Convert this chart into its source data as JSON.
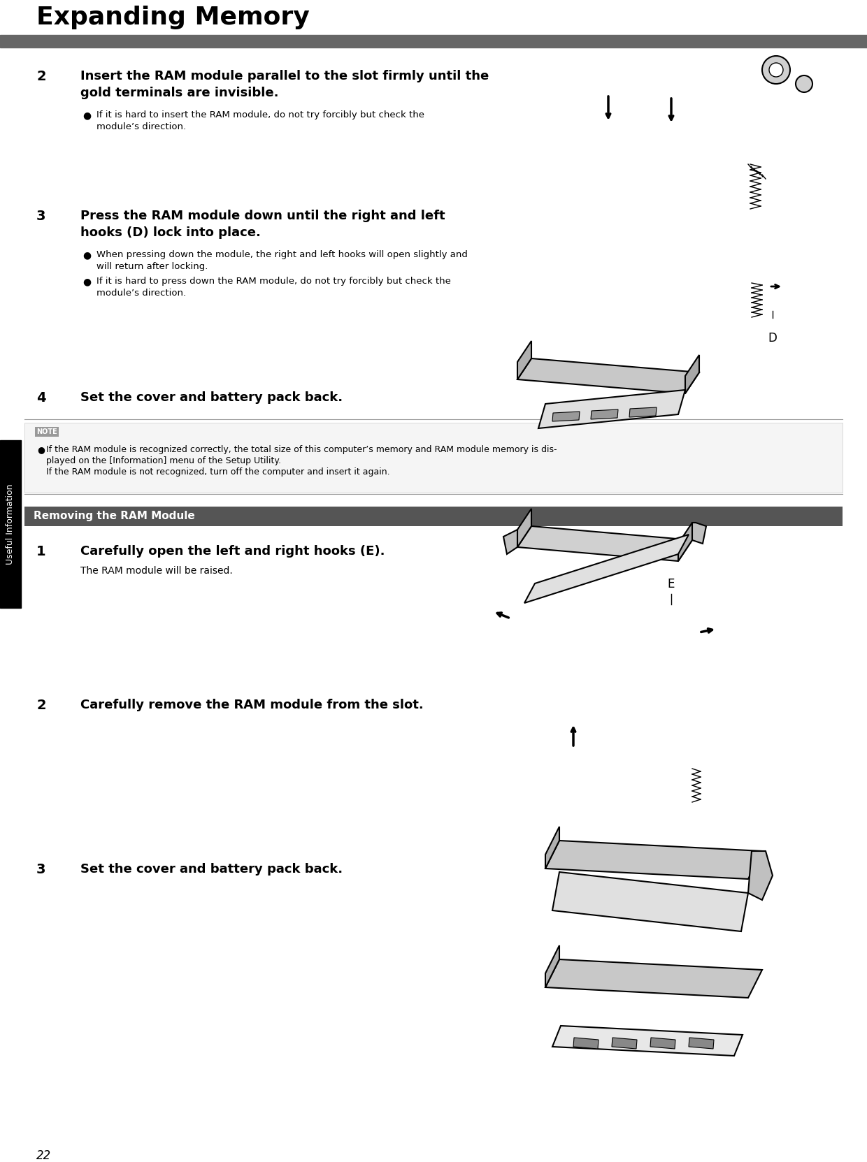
{
  "title": "Expanding Memory",
  "page_number": "22",
  "sidebar_text": "Useful Information",
  "sidebar_bg": "#000000",
  "sidebar_text_color": "#ffffff",
  "title_bar_color": "#666666",
  "section_header_bg": "#555555",
  "section_header_text": "#ffffff",
  "background": "#ffffff",
  "step2_heading": "Insert the RAM module parallel to the slot firmly until the\ngold terminals are invisible.",
  "step2_bullet": "If it is hard to insert the RAM module, do not try forcibly but check the\nmodule’s direction.",
  "step3_heading": "Press the RAM module down until the right and left\nhooks (D) lock into place.",
  "step3_bullet1": "When pressing down the module, the right and left hooks will open slightly and\nwill return after locking.",
  "step3_bullet2": "If it is hard to press down the RAM module, do not try forcibly but check the\nmodule’s direction.",
  "step4_heading": "Set the cover and battery pack back.",
  "note_label": "NOTE",
  "note_text1": "If the RAM module is recognized correctly, the total size of this computer’s memory and RAM module memory is dis-",
  "note_text2": "played on the [Information] menu of the Setup Utility.",
  "note_text3": "If the RAM module is not recognized, turn off the computer and insert it again.",
  "remove_section": "Removing the RAM Module",
  "remove1_heading": "Carefully open the left and right hooks (E).",
  "remove1_sub": "The RAM module will be raised.",
  "remove2_heading": "Carefully remove the RAM module from the slot.",
  "remove3_heading": "Set the cover and battery pack back."
}
